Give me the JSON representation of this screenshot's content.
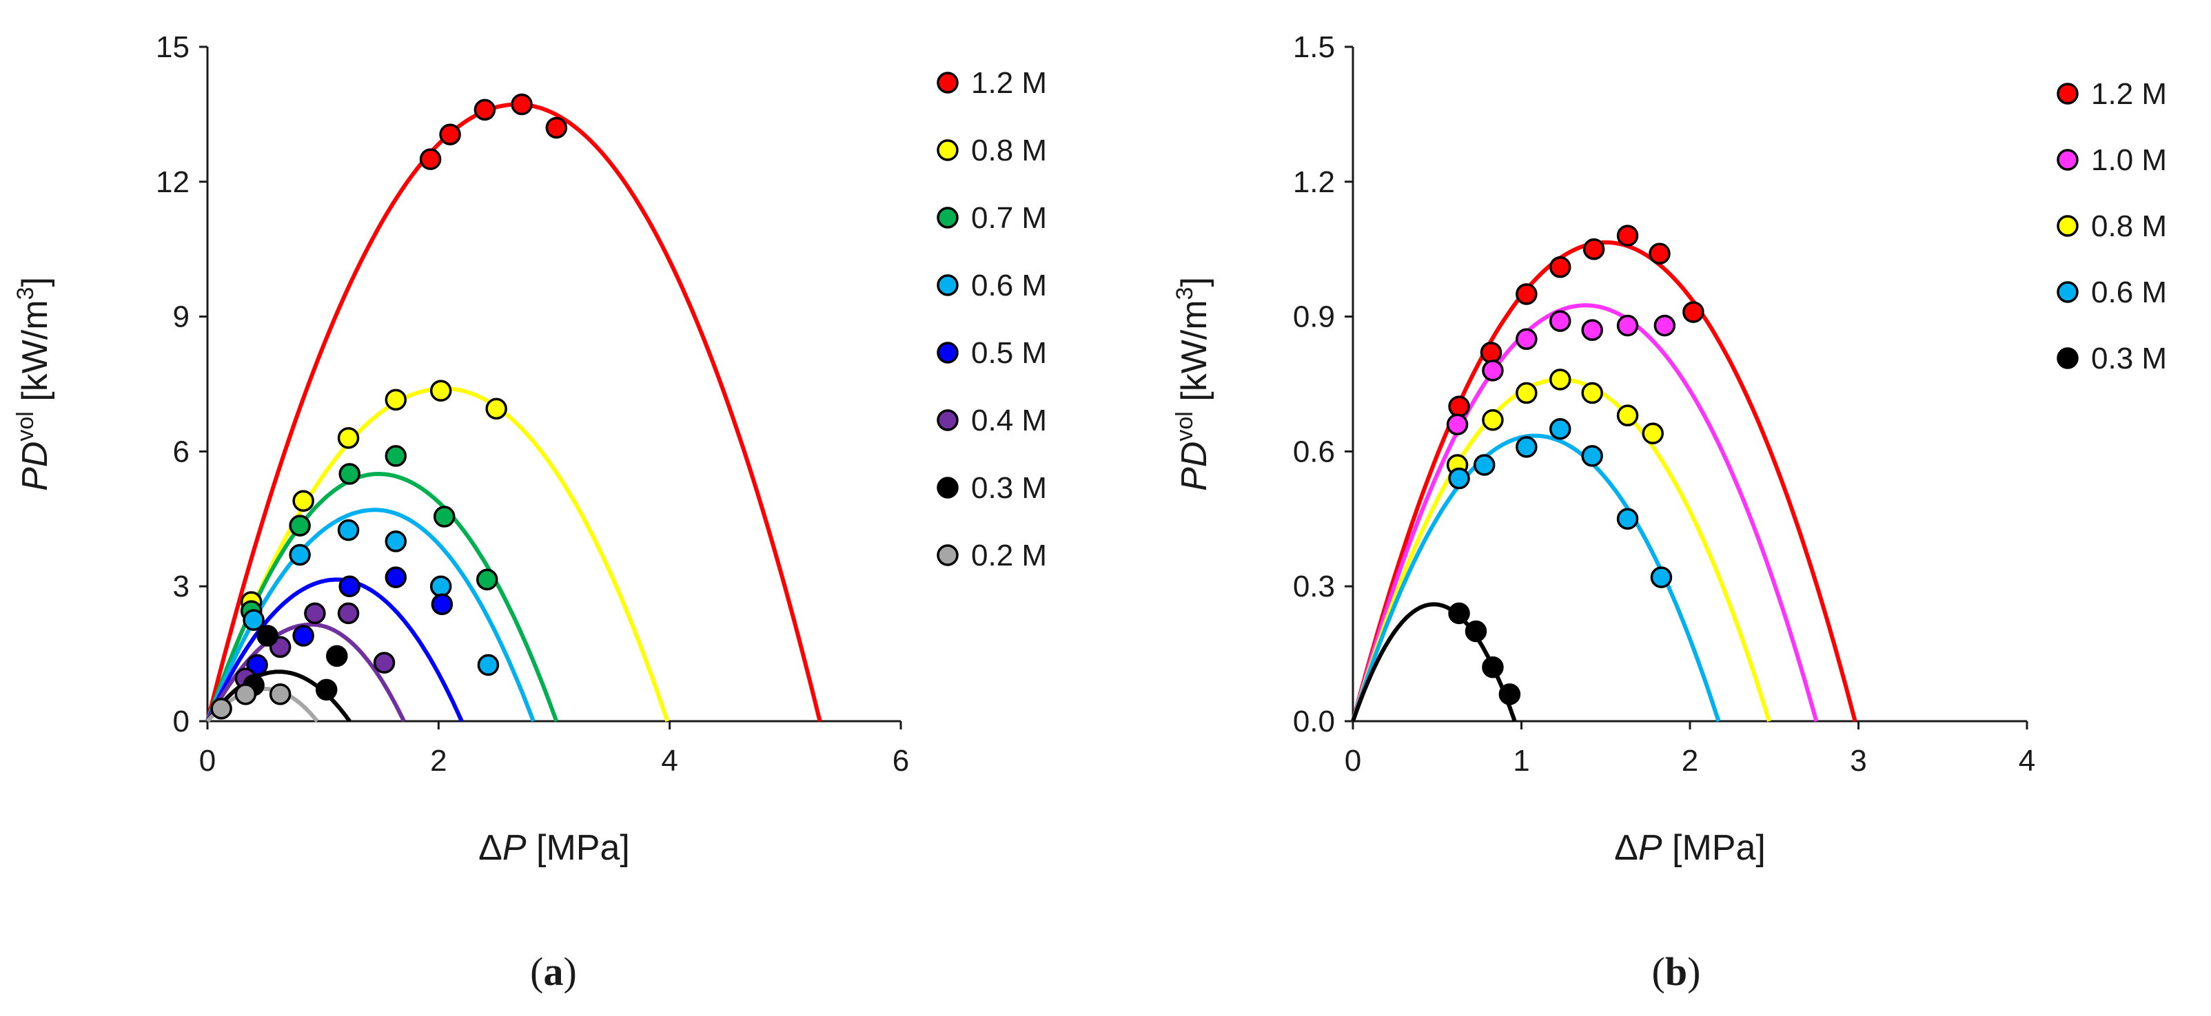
{
  "chart_data": [
    {
      "type": "scatter",
      "panel": "a",
      "caption_open": "(",
      "caption_letter": "a",
      "caption_close": ")",
      "xlabel_prefix": "Δ",
      "xlabel_var": "P",
      "xlabel_unit": " [MPa]",
      "ylabel_var": "PD",
      "ylabel_sup": "vol",
      "ylabel_unit": " [kW/m",
      "ylabel_unit_sup": "3",
      "ylabel_close": "]",
      "xlim": [
        0,
        6
      ],
      "ylim": [
        0,
        15
      ],
      "xticks": [
        0,
        2,
        4,
        6
      ],
      "yticks": [
        0,
        3,
        6,
        9,
        12,
        15
      ],
      "xtick_labels": [
        "0",
        "2",
        "4",
        "6"
      ],
      "ytick_labels": [
        "0",
        "3",
        "6",
        "9",
        "12",
        "15"
      ],
      "legend_position": "right",
      "series": [
        {
          "name": "1.2 M",
          "color": "#ff0000",
          "curve_max": 13.72,
          "curve_xmax": 2.68,
          "curve_xend": 5.3,
          "points": [
            [
              1.93,
              12.5
            ],
            [
              2.1,
              13.05
            ],
            [
              2.4,
              13.6
            ],
            [
              2.72,
              13.72
            ],
            [
              3.02,
              13.2
            ]
          ]
        },
        {
          "name": "0.8 M",
          "color": "#ffff00",
          "curve_max": 7.4,
          "curve_xmax": 2.05,
          "curve_xend": 3.98,
          "points": [
            [
              0.38,
              2.65
            ],
            [
              0.83,
              4.9
            ],
            [
              1.22,
              6.3
            ],
            [
              1.63,
              7.15
            ],
            [
              2.02,
              7.35
            ],
            [
              2.5,
              6.95
            ]
          ]
        },
        {
          "name": "0.7 M",
          "color": "#00b050",
          "curve_max": 5.5,
          "curve_xmax": 1.48,
          "curve_xend": 3.02,
          "points": [
            [
              0.38,
              2.45
            ],
            [
              0.8,
              4.35
            ],
            [
              1.23,
              5.5
            ],
            [
              1.63,
              5.9
            ],
            [
              2.05,
              4.55
            ],
            [
              2.42,
              3.15
            ]
          ]
        },
        {
          "name": "0.6 M",
          "color": "#00b0f0",
          "curve_max": 4.7,
          "curve_xmax": 1.45,
          "curve_xend": 2.82,
          "points": [
            [
              0.4,
              2.25
            ],
            [
              0.8,
              3.7
            ],
            [
              1.22,
              4.25
            ],
            [
              1.63,
              4.0
            ],
            [
              2.02,
              3.0
            ],
            [
              2.43,
              1.25
            ]
          ]
        },
        {
          "name": "0.5 M",
          "color": "#0000ff",
          "curve_max": 3.15,
          "curve_xmax": 1.12,
          "curve_xend": 2.2,
          "points": [
            [
              0.43,
              1.25
            ],
            [
              0.83,
              1.9
            ],
            [
              1.23,
              3.0
            ],
            [
              1.63,
              3.2
            ],
            [
              2.03,
              2.6
            ]
          ]
        },
        {
          "name": "0.4 M",
          "color": "#7030a0",
          "curve_max": 2.15,
          "curve_xmax": 0.9,
          "curve_xend": 1.7,
          "points": [
            [
              0.33,
              0.95
            ],
            [
              0.63,
              1.65
            ],
            [
              0.93,
              2.4
            ],
            [
              1.22,
              2.4
            ],
            [
              1.53,
              1.3
            ]
          ]
        },
        {
          "name": "0.3 M",
          "color": "#000000",
          "curve_max": 1.1,
          "curve_xmax": 0.62,
          "curve_xend": 1.23,
          "points": [
            [
              0.4,
              0.8
            ],
            [
              0.52,
              1.9
            ],
            [
              1.12,
              1.45
            ],
            [
              1.03,
              0.7
            ]
          ]
        },
        {
          "name": "0.2 M",
          "color": "#a6a6a6",
          "curve_max": 0.72,
          "curve_xmax": 0.5,
          "curve_xend": 0.95,
          "points": [
            [
              0.12,
              0.28
            ],
            [
              0.33,
              0.6
            ],
            [
              0.63,
              0.6
            ]
          ]
        }
      ]
    },
    {
      "type": "scatter",
      "panel": "b",
      "caption_open": "(",
      "caption_letter": "b",
      "caption_close": ")",
      "xlabel_prefix": "Δ",
      "xlabel_var": "P",
      "xlabel_unit": " [MPa]",
      "ylabel_var": "PD",
      "ylabel_sup": "vol",
      "ylabel_unit": " [kW/m",
      "ylabel_unit_sup": "3",
      "ylabel_close": "]",
      "xlim": [
        0,
        4
      ],
      "ylim": [
        0,
        1.5
      ],
      "xticks": [
        0,
        1,
        2,
        3,
        4
      ],
      "yticks": [
        0,
        0.3,
        0.6,
        0.9,
        1.2,
        1.5
      ],
      "xtick_labels": [
        "0",
        "1",
        "2",
        "3",
        "4"
      ],
      "ytick_labels": [
        "0.0",
        "0.3",
        "0.6",
        "0.9",
        "1.2",
        "1.5"
      ],
      "legend_position": "right",
      "series": [
        {
          "name": "1.2 M",
          "color": "#ff0000",
          "curve_max": 1.065,
          "curve_xmax": 1.5,
          "curve_xend": 2.98,
          "points": [
            [
              0.63,
              0.7
            ],
            [
              0.82,
              0.82
            ],
            [
              1.03,
              0.95
            ],
            [
              1.23,
              1.01
            ],
            [
              1.43,
              1.05
            ],
            [
              1.63,
              1.08
            ],
            [
              1.82,
              1.04
            ],
            [
              2.02,
              0.91
            ]
          ]
        },
        {
          "name": "1.0 M",
          "color": "#ff33ff",
          "curve_max": 0.925,
          "curve_xmax": 1.38,
          "curve_xend": 2.75,
          "points": [
            [
              0.62,
              0.66
            ],
            [
              0.83,
              0.78
            ],
            [
              1.03,
              0.85
            ],
            [
              1.23,
              0.89
            ],
            [
              1.42,
              0.87
            ],
            [
              1.63,
              0.88
            ],
            [
              1.85,
              0.88
            ]
          ]
        },
        {
          "name": "0.8 M",
          "color": "#ffff00",
          "curve_max": 0.76,
          "curve_xmax": 1.23,
          "curve_xend": 2.47,
          "points": [
            [
              0.62,
              0.57
            ],
            [
              0.83,
              0.67
            ],
            [
              1.03,
              0.73
            ],
            [
              1.23,
              0.76
            ],
            [
              1.42,
              0.73
            ],
            [
              1.63,
              0.68
            ],
            [
              1.78,
              0.64
            ]
          ]
        },
        {
          "name": "0.6 M",
          "color": "#00b0f0",
          "curve_max": 0.635,
          "curve_xmax": 1.08,
          "curve_xend": 2.17,
          "points": [
            [
              0.63,
              0.54
            ],
            [
              0.78,
              0.57
            ],
            [
              1.03,
              0.61
            ],
            [
              1.23,
              0.65
            ],
            [
              1.42,
              0.59
            ],
            [
              1.63,
              0.45
            ],
            [
              1.83,
              0.32
            ]
          ]
        },
        {
          "name": "0.3 M",
          "color": "#000000",
          "curve_max": 0.26,
          "curve_xmax": 0.48,
          "curve_xend": 0.96,
          "points": [
            [
              0.63,
              0.24
            ],
            [
              0.73,
              0.2
            ],
            [
              0.83,
              0.12
            ],
            [
              0.93,
              0.06
            ]
          ]
        }
      ]
    }
  ]
}
